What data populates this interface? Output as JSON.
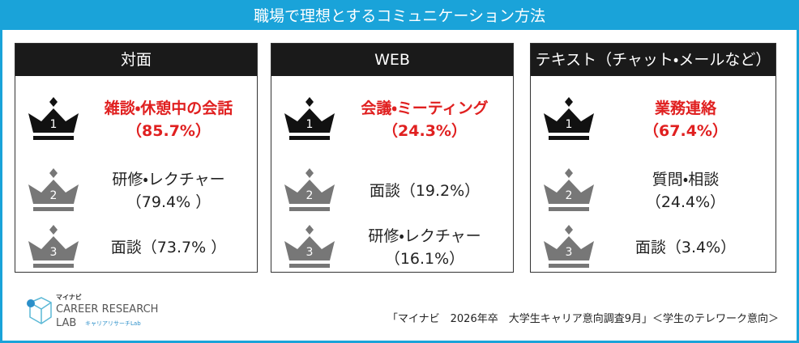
{
  "title": "職場で理想とするコミュニケーション方法",
  "panels": [
    {
      "heading": "対面",
      "items": [
        {
          "rank": "1",
          "lines": [
            "雑談・休憩中の会話",
            "（85.7%）"
          ]
        },
        {
          "rank": "2",
          "lines": [
            "研修・レクチャー",
            "（79.4% ）"
          ]
        },
        {
          "rank": "3",
          "lines": [
            "面談（73.7% ）"
          ]
        }
      ]
    },
    {
      "heading": "WEB",
      "items": [
        {
          "rank": "1",
          "lines": [
            "会議・ミーティング",
            "（24.3%）"
          ]
        },
        {
          "rank": "2",
          "lines": [
            "面談（19.2%）"
          ]
        },
        {
          "rank": "3",
          "lines": [
            "研修・レクチャー",
            "（16.1%）"
          ]
        }
      ]
    },
    {
      "heading": "テキスト（チャット・メールなど）",
      "items": [
        {
          "rank": "1",
          "lines": [
            "業務連絡",
            "（67.4%）"
          ]
        },
        {
          "rank": "2",
          "lines": [
            "質問・相談",
            "（24.4%）"
          ]
        },
        {
          "rank": "3",
          "lines": [
            "面談（3.4%）"
          ]
        }
      ]
    }
  ],
  "logo": {
    "brand": "マイナビ",
    "name": "CAREER RESEARCH",
    "sub": "LAB",
    "tag": "キャリアリサーチLab"
  },
  "source": "「マイナビ　2026年卒　大学生キャリア意向調査9月」＜学生のテレワーク意向＞"
}
